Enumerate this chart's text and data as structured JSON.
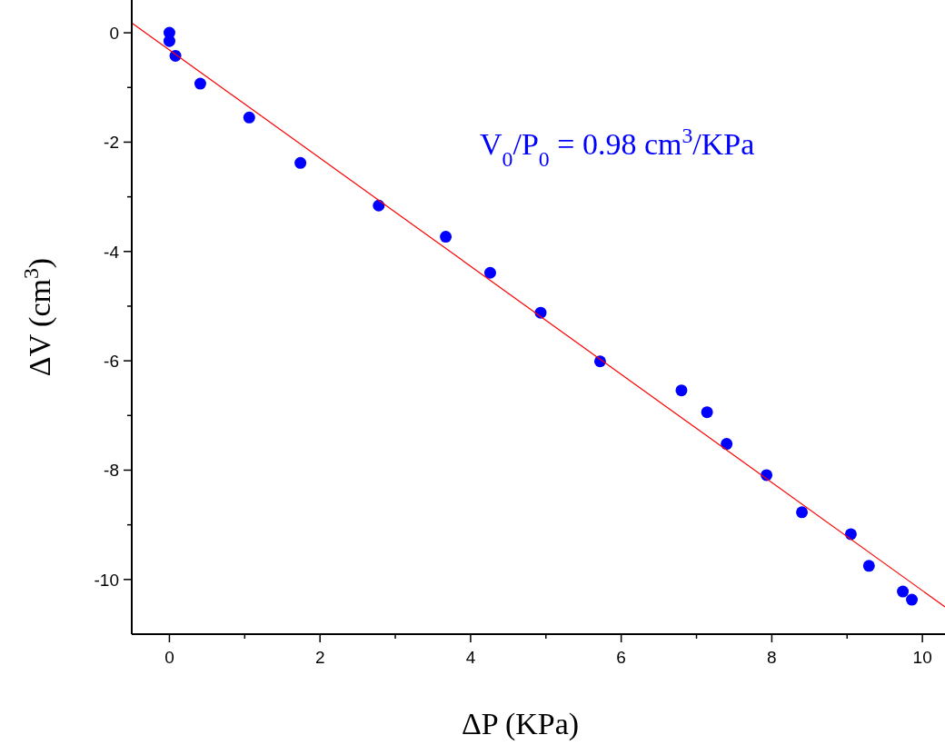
{
  "chart_data": {
    "type": "scatter",
    "xlabel": "ΔP (KPa)",
    "ylabel": "ΔV (cm$^{3}$)",
    "annotations": [
      "V$_{0}$/P$_{0}$ = 0.98 cm$^{3}$/KPa"
    ],
    "xlim": [
      -0.5,
      10.3
    ],
    "ylim": [
      -11,
      0.6
    ],
    "xticks": [
      0,
      {
        "value": 1,
        "label": null
      },
      2,
      {
        "value": 3,
        "label": null
      },
      4,
      {
        "value": 5,
        "label": null
      },
      6,
      {
        "value": 7,
        "label": null
      },
      8,
      {
        "value": 9,
        "label": null
      },
      10
    ],
    "yticks": [
      -10,
      {
        "value": -9,
        "label": null
      },
      -8,
      {
        "value": -7,
        "label": null
      },
      -6,
      {
        "value": -5,
        "label": null
      },
      -4,
      {
        "value": -3,
        "label": null
      },
      -2,
      {
        "value": -1,
        "label": null
      },
      0
    ],
    "grid": false,
    "series": [
      {
        "marker": "circle",
        "color": "#0000ff",
        "x": [
          0,
          0,
          0.08,
          0.41,
          1.06,
          1.74,
          2.78,
          3.67,
          4.26,
          4.93,
          5.72,
          6.8,
          7.14,
          7.4,
          7.93,
          8.4,
          9.05,
          9.29,
          9.74,
          9.86
        ],
        "values": [
          0,
          -0.15,
          -0.42,
          -0.93,
          -1.55,
          -2.38,
          -3.16,
          -3.73,
          -4.39,
          -5.12,
          -6.01,
          -6.54,
          -6.94,
          -7.52,
          -8.09,
          -8.77,
          -9.17,
          -9.75,
          -10.22,
          -10.37
        ]
      },
      {
        "type": "line",
        "color": "#ff0000",
        "line_style": "solid",
        "x": [
          -0.5,
          10.3
        ],
        "values": [
          0.18,
          -10.5
        ]
      }
    ]
  }
}
